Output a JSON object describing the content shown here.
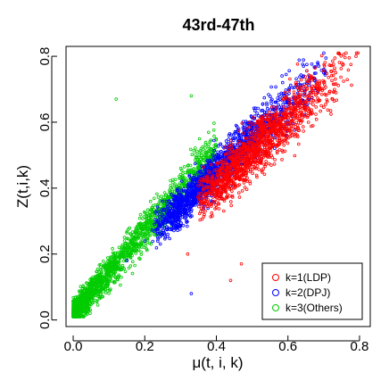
{
  "chart_data": {
    "type": "scatter",
    "title": "43rd-47th",
    "xlabel": "μ(t, i, k)",
    "ylabel": "Z(t,i,k)",
    "xlim": [
      -0.02,
      0.83
    ],
    "ylim": [
      -0.02,
      0.83
    ],
    "xticks": [
      "0.0",
      "0.2",
      "0.4",
      "0.6",
      "0.8"
    ],
    "xtick_values": [
      0.0,
      0.2,
      0.4,
      0.6,
      0.8
    ],
    "yticks": [
      "0.0",
      "0.2",
      "0.4",
      "0.6",
      "0.8"
    ],
    "ytick_values": [
      0.0,
      0.2,
      0.4,
      0.6,
      0.8
    ],
    "grid": false,
    "legend_position": "bottom-right",
    "point_style": "open-circle",
    "series": [
      {
        "name": "k=1(LDP)",
        "color": "#ff0000",
        "approx_points": 1400,
        "x_range": [
          0.25,
          0.8
        ],
        "trend_slope": 1.0,
        "trend_intercept": 0.01,
        "spread": 0.06,
        "sample_points": [
          [
            0.32,
            0.2
          ],
          [
            0.4,
            0.34
          ],
          [
            0.45,
            0.4
          ],
          [
            0.5,
            0.48
          ],
          [
            0.55,
            0.52
          ],
          [
            0.6,
            0.6
          ],
          [
            0.65,
            0.66
          ],
          [
            0.7,
            0.72
          ],
          [
            0.75,
            0.78
          ],
          [
            0.79,
            0.8
          ],
          [
            0.44,
            0.12
          ],
          [
            0.47,
            0.17
          ]
        ]
      },
      {
        "name": "k=2(DPJ)",
        "color": "#0000ff",
        "approx_points": 1800,
        "x_range": [
          0.12,
          0.72
        ],
        "trend_slope": 1.05,
        "trend_intercept": 0.03,
        "spread": 0.055,
        "sample_points": [
          [
            0.15,
            0.18
          ],
          [
            0.2,
            0.24
          ],
          [
            0.25,
            0.3
          ],
          [
            0.3,
            0.35
          ],
          [
            0.35,
            0.4
          ],
          [
            0.4,
            0.45
          ],
          [
            0.45,
            0.5
          ],
          [
            0.5,
            0.55
          ],
          [
            0.55,
            0.6
          ],
          [
            0.6,
            0.66
          ],
          [
            0.66,
            0.72
          ],
          [
            0.7,
            0.75
          ],
          [
            0.33,
            0.08
          ]
        ]
      },
      {
        "name": "k=3(Others)",
        "color": "#00cc00",
        "approx_points": 1800,
        "x_range": [
          0.0,
          0.4
        ],
        "trend_slope": 1.25,
        "trend_intercept": 0.02,
        "spread": 0.06,
        "sample_points": [
          [
            0.01,
            0.02
          ],
          [
            0.03,
            0.05
          ],
          [
            0.05,
            0.08
          ],
          [
            0.08,
            0.12
          ],
          [
            0.1,
            0.15
          ],
          [
            0.15,
            0.2
          ],
          [
            0.2,
            0.26
          ],
          [
            0.25,
            0.32
          ],
          [
            0.3,
            0.4
          ],
          [
            0.35,
            0.46
          ],
          [
            0.12,
            0.67
          ],
          [
            0.33,
            0.68
          ]
        ]
      }
    ]
  }
}
